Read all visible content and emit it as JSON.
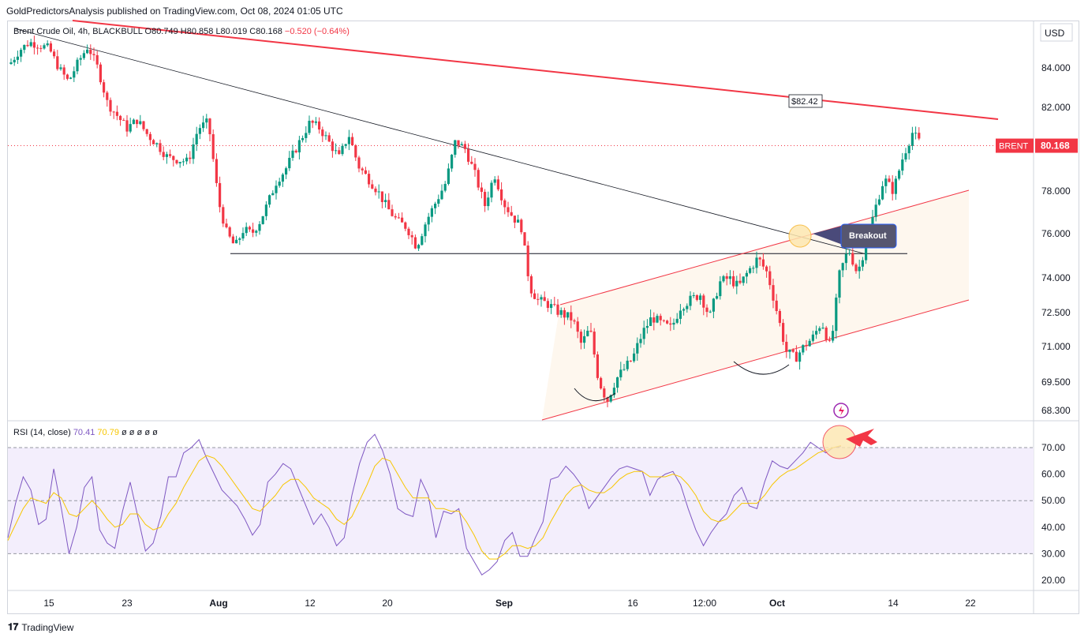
{
  "header": {
    "published": "GoldPredictorsAnalysis published on TradingView.com, Oct 08, 2024 01:05 UTC"
  },
  "legend": {
    "symbol": "Brent Crude Oil, 4h, BLACKBULL",
    "o": "O80.749",
    "h": "H80.858",
    "l": "L80.019",
    "c": "C80.168",
    "change": "−0.520 (−0.64%)"
  },
  "rsi_legend": {
    "label": "RSI (14, close)",
    "rsi": "70.41",
    "ma": "70.79",
    "rest": "ø ø ø ø ø"
  },
  "footer": {
    "brand": "TradingView",
    "logo": "𝟏𝟕"
  },
  "colors": {
    "up": "#089981",
    "down": "#f23645",
    "rsi": "#7e57c2",
    "rsi_ma": "#f7c600",
    "trend": "#f23645",
    "grid": "#d1d4dc",
    "band": "#f3eefc"
  },
  "chart_data": [
    {
      "type": "candlestick",
      "title": "Brent Crude Oil, 4h, BLACKBULL",
      "currency": "USD",
      "x_ticks": [
        "15",
        "23",
        "Aug",
        "12",
        "20",
        "Sep",
        "16",
        "12:00",
        "Oct",
        "14",
        "22"
      ],
      "y_ticks": [
        "84.000",
        "82.000",
        "78.000",
        "76.000",
        "74.000",
        "72.500",
        "71.000",
        "69.500",
        "68.300"
      ],
      "last_price": {
        "label": "BRENT",
        "value": "80.168"
      },
      "annotations": [
        {
          "text": "$82.42",
          "kind": "price-tag-on-resistance"
        },
        {
          "text": "Breakout",
          "kind": "callout"
        }
      ],
      "levels": [
        {
          "name": "support",
          "price": 75.1
        },
        {
          "name": "last",
          "price": 80.168
        }
      ],
      "path_points": [
        [
          "Jul 11",
          84.2
        ],
        [
          "Jul 12",
          84.9
        ],
        [
          "Jul 13",
          85.3
        ],
        [
          "Jul 15",
          85.0
        ],
        [
          "Jul 16",
          84.0
        ],
        [
          "Jul 17",
          83.3
        ],
        [
          "Jul 18",
          84.3
        ],
        [
          "Jul 19",
          85.1
        ],
        [
          "Jul 20",
          84.0
        ],
        [
          "Jul 21",
          82.2
        ],
        [
          "Jul 23",
          81.0
        ],
        [
          "Jul 24",
          81.4
        ],
        [
          "Jul 25",
          80.7
        ],
        [
          "Jul 26",
          80.2
        ],
        [
          "Jul 27",
          79.6
        ],
        [
          "Jul 29",
          79.4
        ],
        [
          "Jul 30",
          81.0
        ],
        [
          "Jul 31",
          81.3
        ],
        [
          "Aug 1",
          77.5
        ],
        [
          "Aug 2",
          76.0
        ],
        [
          "Aug 3",
          75.4
        ],
        [
          "Aug 4",
          76.2
        ],
        [
          "Aug 5",
          76.0
        ],
        [
          "Aug 6",
          76.6
        ],
        [
          "Aug 7",
          77.5
        ],
        [
          "Aug 8",
          78.5
        ],
        [
          "Aug 9",
          79.0
        ],
        [
          "Aug 10",
          79.8
        ],
        [
          "Aug 12",
          81.3
        ],
        [
          "Aug 13",
          81.0
        ],
        [
          "Aug 14",
          80.3
        ],
        [
          "Aug 15",
          79.6
        ],
        [
          "Aug 16",
          80.7
        ],
        [
          "Aug 17",
          79.2
        ],
        [
          "Aug 19",
          78.0
        ],
        [
          "Aug 20",
          77.2
        ],
        [
          "Aug 21",
          76.6
        ],
        [
          "Aug 22",
          76.3
        ],
        [
          "Aug 23",
          75.4
        ],
        [
          "Aug 24",
          76.6
        ],
        [
          "Aug 26",
          78.4
        ],
        [
          "Aug 27",
          80.4
        ],
        [
          "Aug 28",
          80.0
        ],
        [
          "Aug 29",
          78.8
        ],
        [
          "Aug 30",
          77.3
        ],
        [
          "Aug 31",
          78.8
        ],
        [
          "Sep 1",
          77.4
        ],
        [
          "Sep 2",
          76.8
        ],
        [
          "Sep 3",
          76.3
        ],
        [
          "Sep 4",
          73.6
        ],
        [
          "Sep 5",
          73.0
        ],
        [
          "Sep 6",
          72.9
        ],
        [
          "Sep 7",
          72.6
        ],
        [
          "Sep 9",
          72.2
        ],
        [
          "Sep 10",
          71.1
        ],
        [
          "Sep 11",
          71.8
        ],
        [
          "Sep 12",
          69.6
        ],
        [
          "Sep 13",
          68.7
        ],
        [
          "Sep 14",
          69.6
        ],
        [
          "Sep 16",
          70.5
        ],
        [
          "Sep 17",
          71.6
        ],
        [
          "Sep 18",
          72.3
        ],
        [
          "Sep 19",
          72.0
        ],
        [
          "Sep 20",
          71.8
        ],
        [
          "Sep 21",
          72.8
        ],
        [
          "Sep 23",
          73.3
        ],
        [
          "Sep 24",
          72.3
        ],
        [
          "Sep 25",
          73.8
        ],
        [
          "Sep 26",
          74.0
        ],
        [
          "Sep 27",
          73.6
        ],
        [
          "Sep 28",
          74.3
        ],
        [
          "Sep 29",
          74.9
        ],
        [
          "Sep 30",
          74.2
        ],
        [
          "Oct 1",
          72.5
        ],
        [
          "Oct 2",
          70.8
        ],
        [
          "Oct 3",
          70.5
        ],
        [
          "Oct 4",
          71.0
        ],
        [
          "Oct 5",
          71.4
        ],
        [
          "Oct 6",
          72.1
        ],
        [
          "Oct 7",
          70.9
        ],
        [
          "Oct 8",
          74.2
        ],
        [
          "Oct 9",
          75.3
        ],
        [
          "Oct 10",
          74.2
        ],
        [
          "Oct 11",
          75.6
        ],
        [
          "Oct 12",
          77.2
        ],
        [
          "Oct 13",
          78.6
        ],
        [
          "Oct 14",
          78.0
        ],
        [
          "Oct 15",
          79.6
        ],
        [
          "Oct 16",
          80.8
        ],
        [
          "Oct 17",
          80.168
        ]
      ]
    },
    {
      "type": "line",
      "title": "RSI (14, close)",
      "y_ticks": [
        "70.00",
        "60.00",
        "50.00",
        "40.00",
        "30.00",
        "20.00"
      ],
      "ylim": [
        17,
        76
      ],
      "bands": [
        30,
        70
      ],
      "midline": 50,
      "series": [
        {
          "name": "RSI",
          "values": [
            36,
            49,
            59,
            54,
            41,
            43,
            62,
            47,
            30,
            40,
            55,
            59,
            39,
            34,
            32,
            46,
            57,
            44,
            31,
            34,
            44,
            59,
            59,
            68,
            70,
            73,
            66,
            60,
            54,
            51,
            48,
            43,
            37,
            41,
            57,
            60,
            64,
            62,
            55,
            48,
            41,
            45,
            40,
            33,
            36,
            52,
            64,
            72,
            75,
            69,
            60,
            47,
            45,
            44,
            58,
            52,
            36,
            46,
            45,
            47,
            32,
            27,
            22,
            24,
            27,
            35,
            38,
            29,
            29,
            36,
            42,
            58,
            59,
            63,
            60,
            56,
            47,
            51,
            55,
            59,
            62,
            63,
            62,
            61,
            52,
            58,
            60,
            61,
            56,
            47,
            39,
            33,
            38,
            42,
            45,
            52,
            55,
            48,
            47,
            57,
            65,
            63,
            62,
            65,
            68,
            72,
            70,
            68,
            70,
            70.41
          ]
        },
        {
          "name": "RSI MA",
          "values": [
            35,
            41,
            47,
            51,
            50,
            49,
            53,
            51,
            45,
            44,
            47,
            50,
            47,
            43,
            40,
            41,
            45,
            45,
            41,
            39,
            40,
            45,
            49,
            55,
            60,
            65,
            67,
            66,
            63,
            59,
            55,
            51,
            47,
            46,
            49,
            52,
            56,
            58,
            58,
            55,
            51,
            49,
            47,
            43,
            41,
            44,
            50,
            56,
            63,
            66,
            65,
            60,
            55,
            51,
            51,
            51,
            47,
            47,
            46,
            46,
            42,
            37,
            31,
            28,
            28,
            30,
            33,
            33,
            32,
            33,
            36,
            42,
            47,
            52,
            55,
            56,
            54,
            53,
            53,
            55,
            58,
            60,
            61,
            61,
            59,
            59,
            59,
            60,
            59,
            56,
            52,
            46,
            43,
            42,
            43,
            46,
            49,
            49,
            49,
            52,
            56,
            59,
            61,
            62,
            64,
            66,
            68,
            69,
            70,
            70.79
          ]
        }
      ]
    }
  ]
}
